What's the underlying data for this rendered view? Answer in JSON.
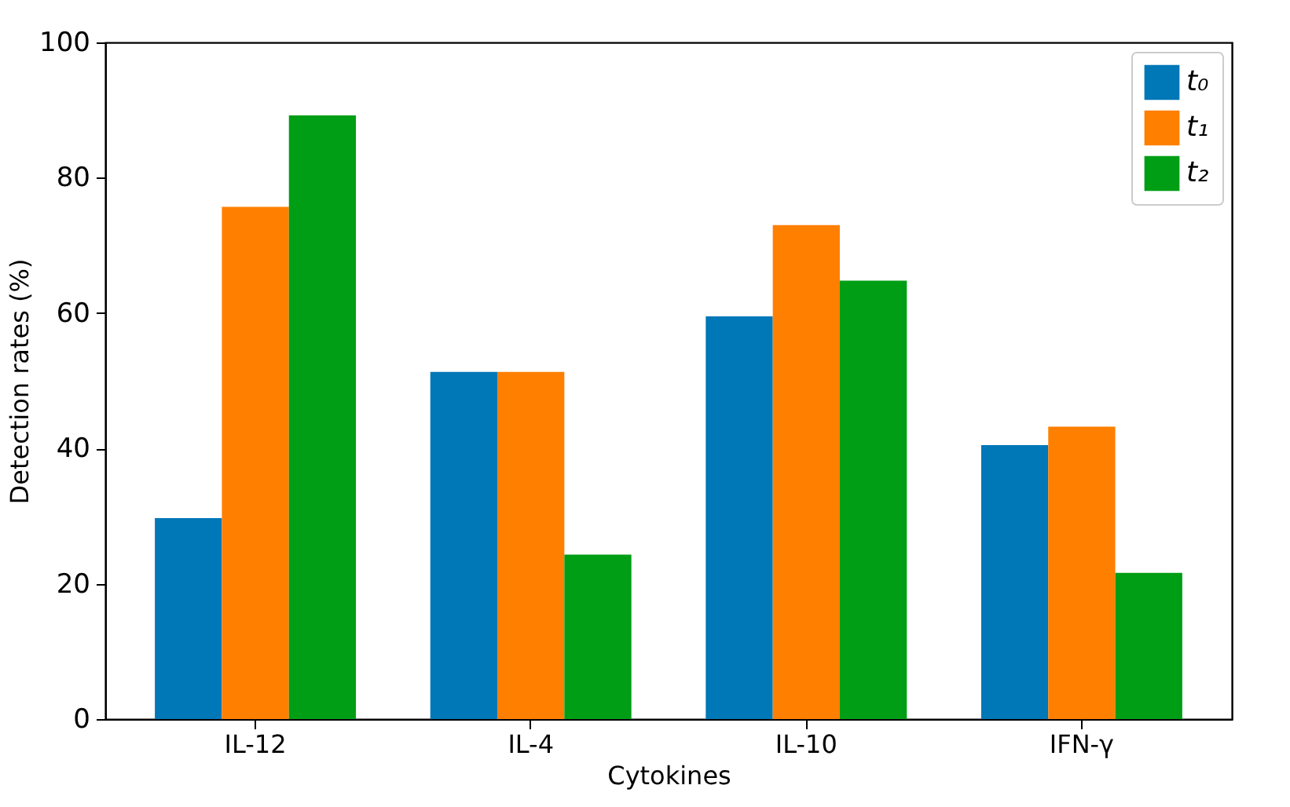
{
  "chart_data": {
    "type": "bar",
    "xlabel": "Cytokines",
    "ylabel": "Detection rates (%)",
    "categories": [
      "IL-12",
      "IL-4",
      "IL-10",
      "IFN-γ"
    ],
    "series": [
      {
        "name": "t₀",
        "color": "#0077b6",
        "values": [
          29.7,
          51.3,
          59.5,
          40.5
        ]
      },
      {
        "name": "t₁",
        "color": "#ff7f00",
        "values": [
          75.7,
          51.3,
          73.0,
          43.2
        ]
      },
      {
        "name": "t₂",
        "color": "#009e15",
        "values": [
          89.2,
          24.3,
          64.8,
          21.6
        ]
      }
    ],
    "ylim": [
      0,
      100
    ],
    "yticks": [
      0,
      20,
      40,
      60,
      80,
      100
    ],
    "grid": false,
    "legend": "top right"
  }
}
